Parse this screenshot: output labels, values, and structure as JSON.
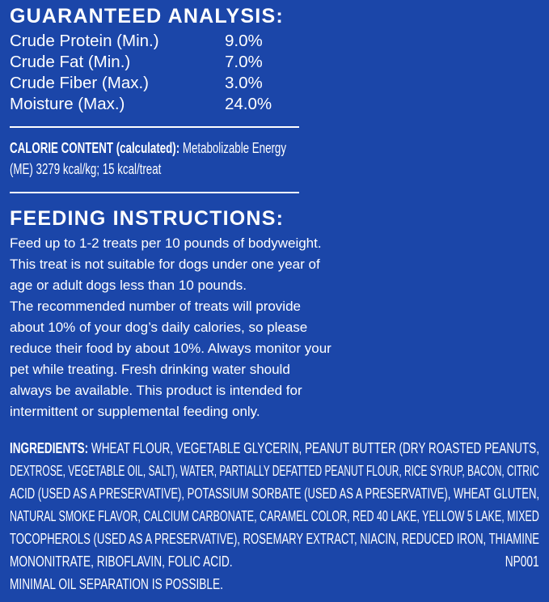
{
  "guaranteed_analysis": {
    "heading": "GUARANTEED ANALYSIS:",
    "rows": [
      {
        "label": "Crude Protein (Min.)",
        "value": "9.0%"
      },
      {
        "label": "Crude Fat (Min.)",
        "value": "7.0%"
      },
      {
        "label": "Crude Fiber (Max.)",
        "value": "3.0%"
      },
      {
        "label": "Moisture (Max.)",
        "value": "24.0%"
      }
    ]
  },
  "calorie": {
    "label": "CALORIE CONTENT (calculated):",
    "line1": " Metabolizable Energy",
    "line2": "(ME) 3279 kcal/kg; 15 kcal/treat"
  },
  "feeding": {
    "heading": "FEEDING INSTRUCTIONS:",
    "lines": [
      "Feed up to 1-2 treats per 10 pounds of bodyweight.",
      "This treat is not suitable for dogs under one year of",
      "age or adult dogs less than 10 pounds.",
      "The recommended number of treats will provide",
      "about 10% of your dog’s daily calories, so please",
      "reduce their food by about 10%. Always monitor your",
      "pet while treating. Fresh drinking water should",
      "always be available. This product is intended for",
      "intermittent or supplemental feeding only."
    ]
  },
  "ingredients": {
    "label": "INGREDIENTS:",
    "lines": [
      " WHEAT FLOUR, VEGETABLE GLYCERIN, PEANUT BUTTER (DRY ROASTED PEANUTS,",
      "DEXTROSE, VEGETABLE OIL, SALT), WATER, PARTIALLY DEFATTED PEANUT FLOUR, RICE SYRUP, BACON, CITRIC",
      "ACID (USED AS A PRESERVATIVE), POTASSIUM SORBATE (USED AS A PRESERVATIVE), WHEAT GLUTEN,",
      "NATURAL SMOKE FLAVOR, CALCIUM CARBONATE, CARAMEL COLOR, RED 40 LAKE, YELLOW 5 LAKE, MIXED",
      "TOCOPHEROLS (USED AS A PRESERVATIVE), ROSEMARY EXTRACT, NIACIN, REDUCED IRON, THIAMINE",
      "MONONITRATE, RIBOFLAVIN, FOLIC ACID."
    ],
    "code": "NP001",
    "note": "MINIMAL OIL SEPARATION IS POSSIBLE."
  },
  "colors": {
    "background": "#1b46a9",
    "text": "#ffffff"
  }
}
